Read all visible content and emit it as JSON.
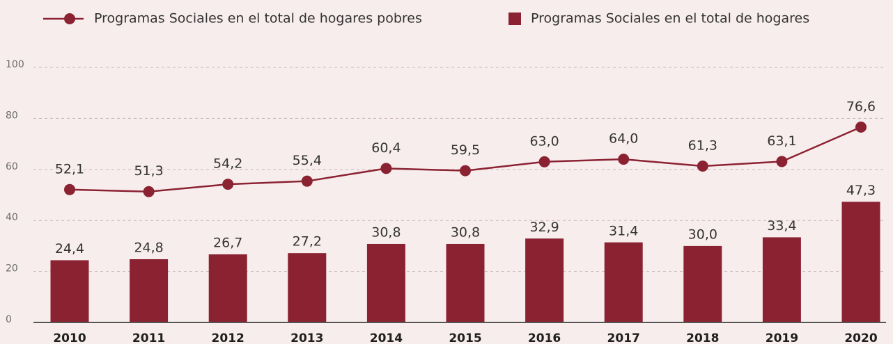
{
  "chart_data": {
    "type": "bar",
    "categories": [
      "2010",
      "2011",
      "2012",
      "2013",
      "2014",
      "2015",
      "2016",
      "2017",
      "2018",
      "2019",
      "2020"
    ],
    "series": [
      {
        "name": "Programas Sociales en el total de hogares pobres",
        "type": "line",
        "color": "#8b2232",
        "values": [
          52.1,
          51.3,
          54.2,
          55.4,
          60.4,
          59.5,
          63.0,
          64.0,
          61.3,
          63.1,
          76.6
        ],
        "value_labels": [
          "52,1",
          "51,3",
          "54,2",
          "55,4",
          "60,4",
          "59,5",
          "63,0",
          "64,0",
          "61,3",
          "63,1",
          "76,6"
        ]
      },
      {
        "name": "Programas Sociales en el total de hogares",
        "type": "bar",
        "color": "#8b2232",
        "values": [
          24.4,
          24.8,
          26.7,
          27.2,
          30.8,
          30.8,
          32.9,
          31.4,
          30.0,
          33.4,
          47.3
        ],
        "value_labels": [
          "24,4",
          "24,8",
          "26,7",
          "27,2",
          "30,8",
          "30,8",
          "32,9",
          "31,4",
          "30,0",
          "33,4",
          "47,3"
        ]
      }
    ],
    "ylim": [
      0,
      100
    ],
    "yticks": [
      0,
      20,
      40,
      60,
      80,
      100
    ],
    "grid": true,
    "legend": "top"
  }
}
